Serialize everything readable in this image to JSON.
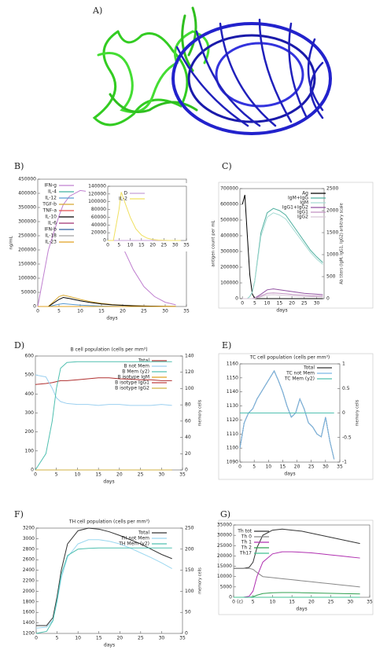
{
  "figure_label": "A)",
  "chart_data": [
    {
      "type": "line",
      "panel": "B)",
      "x_label": "days",
      "y_label": "ng/mL",
      "xlim": [
        0,
        35
      ],
      "xticks": [
        0,
        5,
        10,
        15,
        20,
        25,
        30,
        35
      ],
      "ylim": [
        0,
        450000
      ],
      "yticks": [
        0,
        50000,
        100000,
        150000,
        200000,
        250000,
        300000,
        350000,
        400000,
        450000
      ],
      "x": [
        0,
        2.5,
        5,
        6,
        7.5,
        10,
        12.5,
        15,
        17.5,
        20,
        22.5,
        25,
        27.5,
        30,
        32.5
      ],
      "series": [
        {
          "name": "IFN-g",
          "color": "#c080d0",
          "values": [
            0,
            200000,
            320000,
            360000,
            390000,
            410000,
            405000,
            370000,
            300000,
            210000,
            130000,
            70000,
            35000,
            15000,
            6000
          ]
        },
        {
          "name": "IL-4",
          "color": "#40b0a0",
          "values": [
            0,
            0,
            0,
            0,
            0,
            0,
            0,
            0,
            0,
            0,
            0,
            0,
            0,
            0,
            0
          ]
        },
        {
          "name": "IL-12",
          "color": "#5a9ad0",
          "values": [
            0,
            0,
            8000,
            10000,
            8000,
            5000,
            3000,
            1500,
            800,
            400,
            200,
            100,
            0,
            0,
            0
          ]
        },
        {
          "name": "TGF-b",
          "color": "#d8a830",
          "values": [
            0,
            0,
            35000,
            40000,
            35000,
            25000,
            17000,
            11000,
            7000,
            4500,
            3000,
            2000,
            1200,
            700,
            400
          ]
        },
        {
          "name": "TNF-a",
          "color": "#e05050",
          "values": [
            0,
            0,
            0,
            0,
            0,
            0,
            0,
            0,
            0,
            0,
            0,
            0,
            0,
            0,
            0
          ]
        },
        {
          "name": "IL-10",
          "color": "#000000",
          "values": [
            0,
            0,
            25000,
            32000,
            28000,
            20000,
            14000,
            9000,
            6000,
            4000,
            2500,
            1500,
            1000,
            500,
            300
          ]
        },
        {
          "name": "IL-6",
          "color": "#a03070",
          "values": [
            0,
            0,
            0,
            0,
            0,
            0,
            0,
            0,
            0,
            0,
            0,
            0,
            0,
            0,
            0
          ]
        },
        {
          "name": "IFN-b",
          "color": "#3060a0",
          "values": [
            0,
            0,
            0,
            0,
            0,
            0,
            0,
            0,
            0,
            0,
            0,
            0,
            0,
            0,
            0
          ]
        },
        {
          "name": "IL-18",
          "color": "#a0a0a0",
          "values": [
            0,
            0,
            0,
            0,
            0,
            0,
            0,
            0,
            0,
            0,
            0,
            0,
            0,
            0,
            0
          ]
        },
        {
          "name": "IL-23",
          "color": "#e0a020",
          "values": [
            0,
            0,
            0,
            0,
            0,
            0,
            0,
            0,
            0,
            0,
            0,
            0,
            0,
            0,
            0
          ]
        }
      ]
    },
    {
      "type": "line",
      "xlim": [
        0,
        35
      ],
      "xticks": [
        0,
        5,
        10,
        15,
        20,
        25,
        30,
        35
      ],
      "ylim": [
        0,
        140000
      ],
      "yticks": [
        0,
        20000,
        40000,
        60000,
        80000,
        100000,
        120000,
        140000
      ],
      "x": [
        0,
        2.5,
        5,
        6,
        7.5,
        10,
        12.5,
        15,
        17.5,
        20,
        22.5,
        25,
        27.5,
        30,
        32.5
      ],
      "series": [
        {
          "name": "D",
          "color": "#c8a0d8",
          "values": [
            0,
            0,
            0,
            0,
            0,
            0,
            0,
            0,
            0,
            0,
            0,
            0,
            0,
            0,
            0
          ]
        },
        {
          "name": "IL-2",
          "color": "#f0e060",
          "values": [
            0,
            0,
            80000,
            125000,
            100000,
            60000,
            30000,
            14000,
            6000,
            2500,
            1000,
            400,
            100,
            0,
            0
          ]
        }
      ]
    },
    {
      "type": "line",
      "panel": "C)",
      "x_label": "days",
      "y_label": "antigen count per mL",
      "y2_label": "Ab titers (IgM, IgG1, IgG2) arbitrary scale",
      "xlim": [
        -1,
        33
      ],
      "xticks": [
        0,
        5,
        10,
        15,
        20,
        25,
        30
      ],
      "ylim": [
        0,
        700000
      ],
      "yticks": [
        0,
        100000,
        200000,
        300000,
        400000,
        500000,
        600000,
        700000
      ],
      "y2lim": [
        0,
        2500
      ],
      "y2ticks": [
        0,
        500,
        1000,
        1500,
        2000,
        2500
      ],
      "x": [
        0,
        1,
        2,
        3,
        4,
        5,
        7.5,
        10,
        12.5,
        15,
        17.5,
        20,
        22.5,
        25,
        27.5,
        30,
        32.5
      ],
      "series": [
        {
          "name": "Ag",
          "color": "#000000",
          "values": [
            600000,
            660000,
            400000,
            150000,
            30000,
            0,
            0,
            0,
            0,
            0,
            0,
            0,
            0,
            0,
            0,
            0,
            0
          ]
        },
        {
          "name": "IgM+IgG",
          "color": "#50b0a0",
          "axis": "y2",
          "values": [
            0,
            0,
            0,
            50,
            150,
            400,
            1500,
            1950,
            2050,
            2000,
            1900,
            1700,
            1500,
            1300,
            1100,
            950,
            820
          ]
        },
        {
          "name": "IgM",
          "color": "#a8dcd4",
          "axis": "y2",
          "values": [
            0,
            0,
            0,
            45,
            140,
            380,
            1420,
            1850,
            1950,
            1900,
            1810,
            1620,
            1430,
            1240,
            1050,
            900,
            780
          ]
        },
        {
          "name": "IgG1+IgG2",
          "color": "#9050a0",
          "axis": "y2",
          "values": [
            0,
            0,
            0,
            0,
            0,
            10,
            100,
            200,
            220,
            200,
            180,
            160,
            140,
            120,
            110,
            100,
            90
          ]
        },
        {
          "name": "IgG1",
          "color": "#c090c0",
          "axis": "y2",
          "values": [
            0,
            0,
            0,
            0,
            0,
            5,
            60,
            120,
            130,
            120,
            110,
            95,
            85,
            75,
            65,
            60,
            55
          ]
        },
        {
          "name": "IgG2",
          "color": "#d8c8d8",
          "axis": "y2",
          "values": [
            0,
            0,
            0,
            0,
            0,
            5,
            40,
            80,
            90,
            80,
            70,
            65,
            55,
            45,
            45,
            40,
            35
          ]
        }
      ]
    },
    {
      "type": "line",
      "panel": "D)",
      "title": "B cell population (cells per mm³)",
      "x_label": "days",
      "y2_label": "memory cells",
      "xlim": [
        0,
        35
      ],
      "xticks": [
        0,
        5,
        10,
        15,
        20,
        25,
        30,
        35
      ],
      "ylim": [
        0,
        600
      ],
      "yticks": [
        0,
        100,
        200,
        300,
        400,
        500,
        600
      ],
      "y2lim": [
        0,
        140
      ],
      "y2ticks": [
        0,
        20,
        40,
        60,
        80,
        100,
        120,
        140
      ],
      "x": [
        0,
        2.5,
        4,
        5,
        6,
        7.5,
        10,
        12.5,
        15,
        17.5,
        20,
        22.5,
        25,
        27.5,
        30,
        32.5
      ],
      "series": [
        {
          "name": "Total",
          "color": "#b03030",
          "values": [
            450,
            455,
            460,
            465,
            470,
            470,
            475,
            480,
            485,
            485,
            480,
            478,
            475,
            475,
            470,
            470
          ]
        },
        {
          "name": "B not Mem",
          "color": "#9cd0f0",
          "values": [
            500,
            490,
            430,
            380,
            360,
            350,
            345,
            345,
            340,
            345,
            345,
            340,
            340,
            340,
            345,
            340
          ]
        },
        {
          "name": "B Mem (y2)",
          "color": "#50c0b0",
          "axis": "y2",
          "values": [
            0,
            20,
            60,
            100,
            125,
            132,
            133,
            133,
            133,
            133,
            133,
            133,
            133,
            133,
            133,
            133
          ]
        },
        {
          "name": "B isotype IgM",
          "color": "#e0a020",
          "values": [
            0,
            0,
            0,
            0,
            0,
            0,
            0,
            0,
            0,
            0,
            0,
            0,
            0,
            0,
            0,
            0
          ]
        },
        {
          "name": "B isotype IgG1",
          "color": "#c04040",
          "values": [
            0,
            0,
            0,
            0,
            0,
            0,
            0,
            0,
            0,
            0,
            0,
            0,
            0,
            0,
            0,
            0
          ]
        },
        {
          "name": "B isotype IgG2",
          "color": "#d0b040",
          "values": [
            0,
            0,
            0,
            0,
            0,
            0,
            0,
            0,
            0,
            0,
            0,
            0,
            0,
            0,
            0,
            0
          ]
        }
      ]
    },
    {
      "type": "line",
      "panel": "E)",
      "title": "TC cell population (cells per mm³)",
      "x_label": "days",
      "y2_label": "memory cells",
      "xlim": [
        0,
        35
      ],
      "xticks": [
        0,
        5,
        10,
        15,
        20,
        25,
        30,
        35
      ],
      "ylim": [
        1090,
        1160
      ],
      "yticks": [
        1090,
        1100,
        1110,
        1120,
        1130,
        1140,
        1150,
        1160
      ],
      "y2lim": [
        -1,
        1
      ],
      "y2ticks": [
        -1,
        -0.5,
        0,
        0.5,
        1
      ],
      "x": [
        0,
        1.5,
        3,
        4.5,
        6,
        7.5,
        9,
        10.5,
        12,
        13.5,
        15,
        16.5,
        18,
        19.5,
        21,
        22.5,
        24,
        25.5,
        27,
        28.5,
        30,
        31.5,
        33
      ],
      "series": [
        {
          "name": "Total",
          "color": "#333333",
          "values": [
            1100,
            1118,
            1125,
            1128,
            1135,
            1140,
            1145,
            1150,
            1155,
            1148,
            1140,
            1130,
            1122,
            1125,
            1135,
            1128,
            1118,
            1115,
            1110,
            1108,
            1122,
            1105,
            1092
          ]
        },
        {
          "name": "TC not Mem",
          "color": "#7ab8e8",
          "values": [
            1100,
            1118,
            1125,
            1128,
            1135,
            1140,
            1145,
            1150,
            1155,
            1148,
            1140,
            1130,
            1122,
            1125,
            1135,
            1128,
            1118,
            1115,
            1110,
            1108,
            1122,
            1105,
            1092
          ]
        },
        {
          "name": "TC Mem (y2)",
          "color": "#50c0b0",
          "axis": "y2",
          "values": [
            0,
            0,
            0,
            0,
            0,
            0,
            0,
            0,
            0,
            0,
            0,
            0,
            0,
            0,
            0,
            0,
            0,
            0,
            0,
            0,
            0,
            0,
            0
          ]
        }
      ]
    },
    {
      "type": "line",
      "panel": "F)",
      "title": "TH cell population (cells per mm³)",
      "x_label": "days",
      "y2_label": "memory cells",
      "xlim": [
        0,
        35
      ],
      "xticks": [
        0,
        5,
        10,
        15,
        20,
        25,
        30,
        35
      ],
      "ylim": [
        1200,
        3200
      ],
      "yticks": [
        1200,
        1400,
        1600,
        1800,
        2000,
        2200,
        2400,
        2600,
        2800,
        3000,
        3200
      ],
      "y2lim": [
        0,
        250
      ],
      "y2ticks": [
        0,
        50,
        100,
        150,
        200,
        250
      ],
      "x": [
        0,
        2.5,
        4,
        5,
        6,
        7.5,
        10,
        12.5,
        15,
        17.5,
        20,
        22.5,
        25,
        27.5,
        30,
        32.5
      ],
      "series": [
        {
          "name": "Total",
          "color": "#333333",
          "values": [
            1350,
            1350,
            1500,
            1900,
            2400,
            2900,
            3150,
            3200,
            3180,
            3130,
            3060,
            2980,
            2900,
            2800,
            2700,
            2620
          ]
        },
        {
          "name": "TH not Mem",
          "color": "#9cd8f0",
          "values": [
            1300,
            1320,
            1450,
            1800,
            2250,
            2650,
            2900,
            2980,
            2980,
            2950,
            2900,
            2820,
            2730,
            2640,
            2540,
            2430
          ]
        },
        {
          "name": "TH Mem (y2)",
          "color": "#50c0b0",
          "axis": "y2",
          "values": [
            0,
            5,
            30,
            80,
            140,
            185,
            200,
            202,
            203,
            203,
            203,
            203,
            203,
            203,
            203,
            203
          ]
        }
      ]
    },
    {
      "type": "line",
      "panel": "G)",
      "x_label": "days",
      "annotation": "(c)",
      "xlim": [
        0,
        35
      ],
      "xticks": [
        0,
        5,
        10,
        15,
        20,
        25,
        30,
        35
      ],
      "ylim": [
        0,
        35000
      ],
      "yticks": [
        0,
        5000,
        10000,
        15000,
        20000,
        25000,
        30000,
        35000
      ],
      "x": [
        0,
        2.5,
        4,
        5,
        6,
        7.5,
        10,
        12.5,
        15,
        17.5,
        20,
        22.5,
        25,
        27.5,
        30,
        32.5
      ],
      "series": [
        {
          "name": "Th tot",
          "color": "#333333",
          "values": [
            14000,
            14000,
            14500,
            17000,
            24000,
            30000,
            32500,
            33000,
            32500,
            32000,
            31000,
            30000,
            29000,
            28000,
            27000,
            26000
          ]
        },
        {
          "name": "Th 0",
          "color": "#888888",
          "values": [
            14000,
            14000,
            14000,
            13500,
            12000,
            10000,
            9500,
            9000,
            8500,
            8000,
            7500,
            7000,
            6500,
            6000,
            5500,
            5000
          ]
        },
        {
          "name": "Th 1",
          "color": "#b030b0",
          "values": [
            0,
            0,
            500,
            3000,
            10000,
            17000,
            21000,
            22000,
            22000,
            21800,
            21500,
            21000,
            20500,
            20000,
            19500,
            19000
          ]
        },
        {
          "name": "Th 2",
          "color": "#30a050",
          "values": [
            0,
            0,
            0,
            300,
            1000,
            1800,
            2200,
            2300,
            2300,
            2200,
            2100,
            2000,
            1900,
            1800,
            1700,
            1600
          ]
        },
        {
          "name": "Th17",
          "color": "#40c090",
          "values": [
            0,
            0,
            0,
            0,
            0,
            0,
            0,
            0,
            0,
            0,
            0,
            0,
            0,
            0,
            0,
            0
          ]
        }
      ]
    }
  ]
}
